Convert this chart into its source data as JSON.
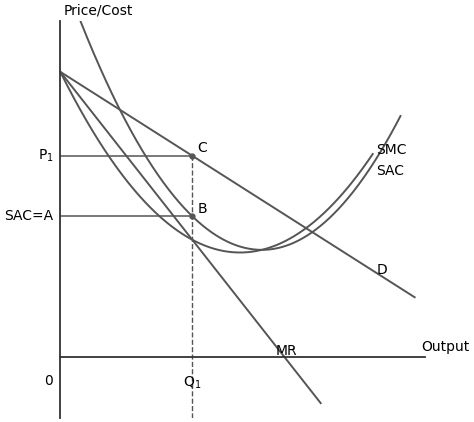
{
  "ylabel": "Price/Cost",
  "xlabel": "Output",
  "bg_color": "#ffffff",
  "line_color": "#555555",
  "axis_color": "#333333",
  "figsize": [
    4.74,
    4.22
  ],
  "dpi": 100,
  "xlim": [
    0,
    1.05
  ],
  "ylim": [
    -0.18,
    1.0
  ],
  "Q1": 0.38,
  "P1": 0.6,
  "SAC_A": 0.42,
  "label_fontsize": 10,
  "curve_lw": 1.4,
  "ref_lw": 1.1,
  "SMC_label": [
    0.89,
    0.88
  ],
  "SAC_label": [
    0.89,
    0.67
  ],
  "D_label": [
    0.82,
    0.38
  ],
  "MR_label": [
    0.57,
    0.065
  ]
}
